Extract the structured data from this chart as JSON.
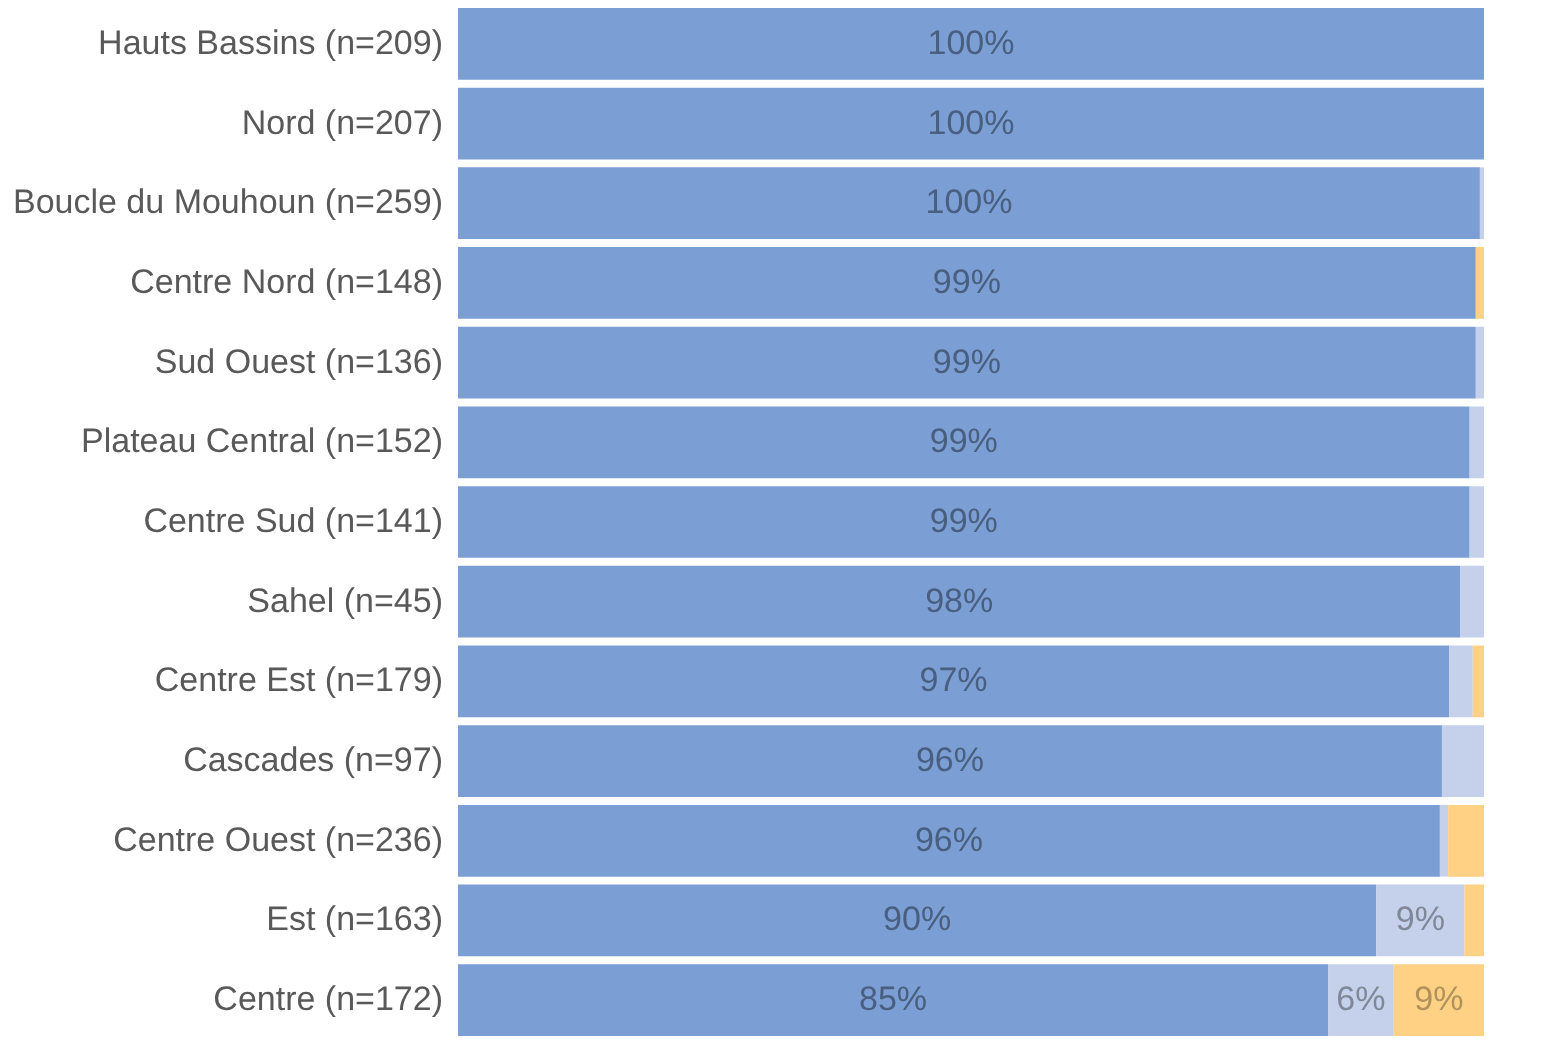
{
  "chart_data": {
    "type": "bar",
    "orientation": "horizontal",
    "stacked": true,
    "categories": [
      "Hauts Bassins (n=209)",
      "Nord (n=207)",
      "Boucle du Mouhoun (n=259)",
      "Centre Nord (n=148)",
      "Sud Ouest (n=136)",
      "Plateau Central (n=152)",
      "Centre Sud (n=141)",
      "Sahel (n=45)",
      "Centre Est (n=179)",
      "Cascades (n=97)",
      "Centre Ouest (n=236)",
      "Est (n=163)",
      "Centre (n=172)"
    ],
    "series": [
      {
        "color": "#7b9fd4",
        "values": [
          100,
          100,
          99.6,
          99.2,
          99.2,
          98.6,
          98.6,
          97.7,
          96.6,
          95.9,
          95.7,
          89.5,
          84.8
        ],
        "value_labels": [
          "100%",
          "100%",
          "100%",
          "99%",
          "99%",
          "99%",
          "99%",
          "98%",
          "97%",
          "96%",
          "96%",
          "90%",
          "85%"
        ]
      },
      {
        "color": "#c5d0eb",
        "values": [
          0,
          0,
          0.4,
          0,
          0.8,
          1.4,
          1.4,
          2.3,
          2.3,
          4.1,
          0.8,
          8.6,
          6.4
        ],
        "value_labels": [
          null,
          null,
          null,
          null,
          null,
          null,
          null,
          null,
          null,
          null,
          null,
          "9%",
          "6%"
        ]
      },
      {
        "color": "#ffd184",
        "values": [
          0,
          0,
          0,
          0.8,
          0,
          0,
          0,
          0,
          1.1,
          0,
          3.5,
          1.9,
          8.8
        ],
        "value_labels": [
          null,
          null,
          null,
          null,
          null,
          null,
          null,
          null,
          null,
          null,
          null,
          null,
          "9%"
        ]
      }
    ],
    "data_labels": false
  }
}
